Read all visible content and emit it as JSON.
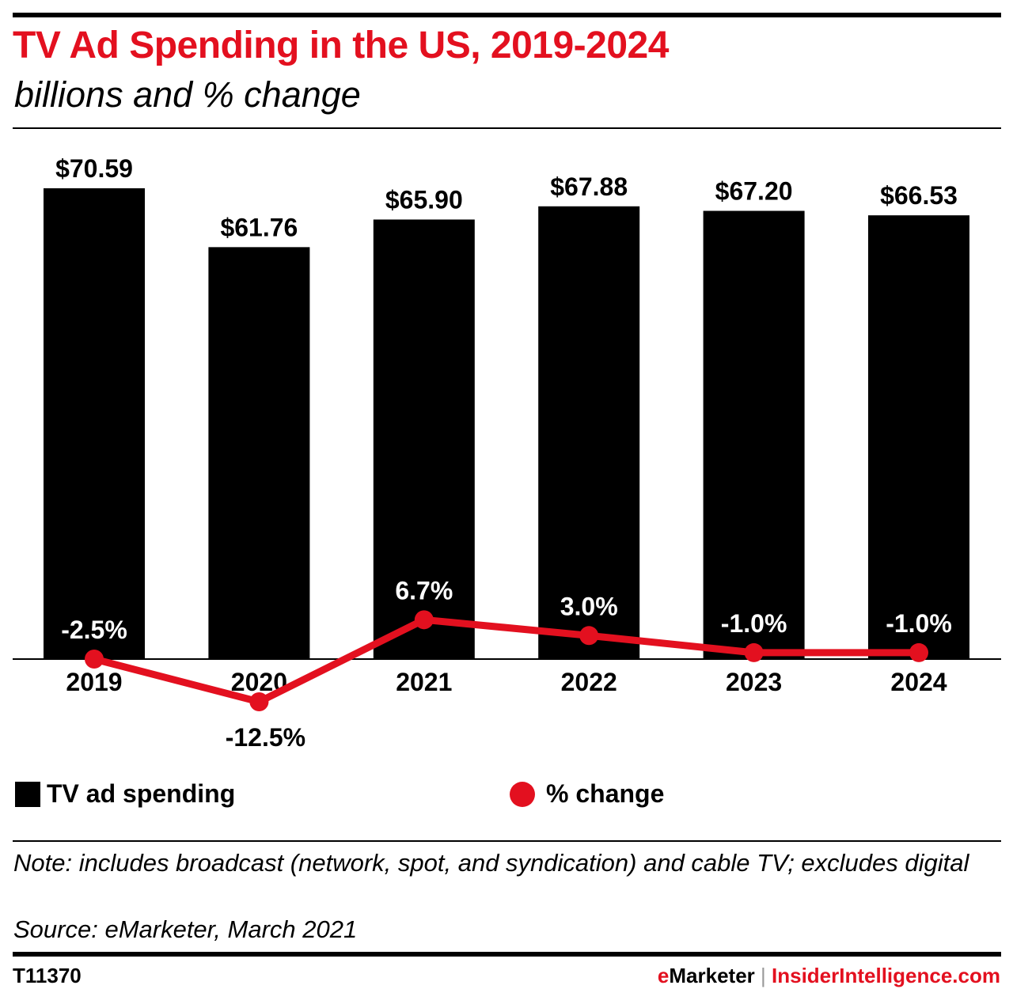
{
  "chart_data": {
    "type": "bar+line",
    "title": "TV Ad Spending in the US, 2019-2024",
    "subtitle": "billions and % change",
    "categories": [
      "2019",
      "2020",
      "2021",
      "2022",
      "2023",
      "2024"
    ],
    "series": [
      {
        "name": "TV ad spending",
        "type": "bar",
        "values": [
          70.59,
          61.76,
          65.9,
          67.88,
          67.2,
          66.53
        ],
        "labels": [
          "$70.59",
          "$61.76",
          "$65.90",
          "$67.88",
          "$67.20",
          "$66.53"
        ],
        "color": "#000000"
      },
      {
        "name": "% change",
        "type": "line",
        "values": [
          -2.5,
          -12.5,
          6.7,
          3.0,
          -1.0,
          -1.0
        ],
        "labels": [
          "-2.5%",
          "-12.5%",
          "6.7%",
          "3.0%",
          "-1.0%",
          "-1.0%"
        ],
        "color": "#e3101f"
      }
    ],
    "grid": false,
    "legend": "bottom"
  },
  "note": "Note: includes broadcast (network, spot, and syndication) and cable TV; excludes digital",
  "source": "Source: eMarketer, March 2021",
  "footer": {
    "id": "T11370",
    "brand_e": "e",
    "brand_rest": "Marketer",
    "separator": "|",
    "site": "InsiderIntelligence.com"
  },
  "colors": {
    "accent": "#e3101f",
    "bar": "#000000"
  }
}
